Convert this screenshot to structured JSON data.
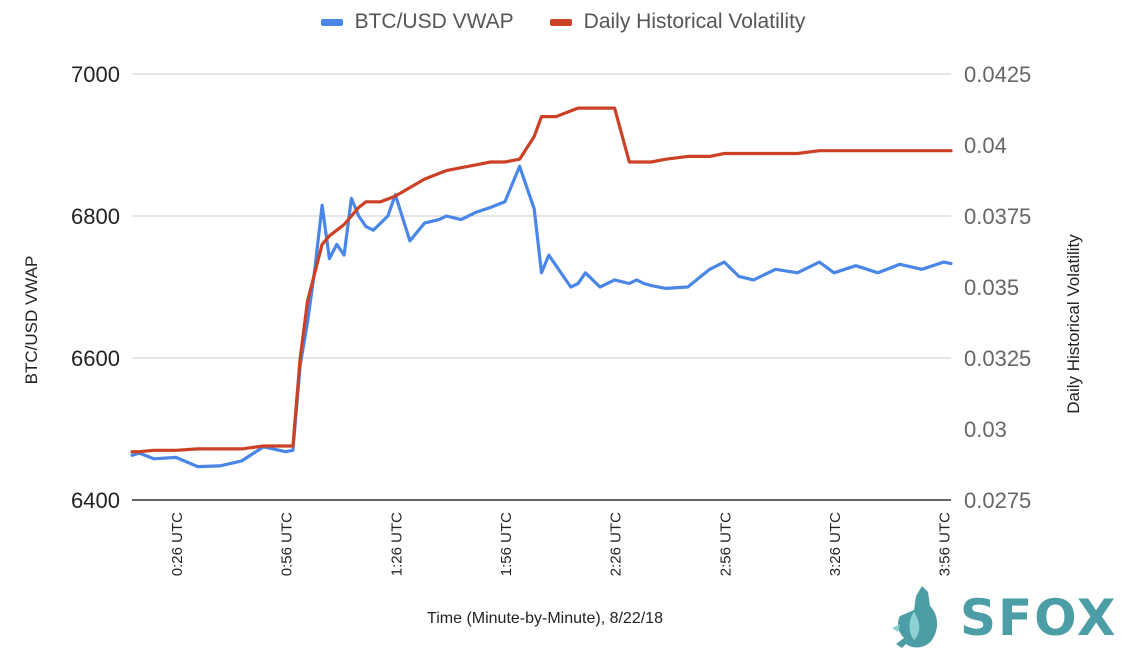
{
  "legend": {
    "series1": "BTC/USD VWAP",
    "series2": "Daily Historical Volatility"
  },
  "axes": {
    "ylabel_left": "BTC/USD VWAP",
    "ylabel_right": "Daily Historical Volatility",
    "xlabel": "Time (Minute-by-Minute), 8/22/18"
  },
  "logo": {
    "text": "SFOX",
    "icon": "fox-logo-icon"
  },
  "colors": {
    "vwap": "#4a86e8",
    "volatility": "#cc4125",
    "grid": "#cccccc",
    "logo": "#4b9ea6"
  },
  "chart_data": {
    "type": "line",
    "x": [
      "0:14",
      "0:16",
      "0:20",
      "0:26",
      "0:32",
      "0:38",
      "0:44",
      "0:50",
      "0:56",
      "0:58",
      "1:00",
      "1:02",
      "1:04",
      "1:06",
      "1:08",
      "1:10",
      "1:12",
      "1:14",
      "1:16",
      "1:18",
      "1:20",
      "1:22",
      "1:24",
      "1:26",
      "1:30",
      "1:34",
      "1:38",
      "1:40",
      "1:44",
      "1:48",
      "1:52",
      "1:56",
      "2:00",
      "2:04",
      "2:06",
      "2:08",
      "2:10",
      "2:12",
      "2:14",
      "2:16",
      "2:18",
      "2:22",
      "2:26",
      "2:30",
      "2:32",
      "2:34",
      "2:36",
      "2:40",
      "2:46",
      "2:52",
      "2:56",
      "3:00",
      "3:04",
      "3:10",
      "3:16",
      "3:22",
      "3:26",
      "3:32",
      "3:38",
      "3:44",
      "3:50",
      "3:56",
      "3:58"
    ],
    "series": [
      {
        "name": "BTC/USD VWAP",
        "axis": "left",
        "values": [
          6463,
          6466,
          6458,
          6460,
          6447,
          6448,
          6455,
          6475,
          6468,
          6470,
          6590,
          6650,
          6725,
          6815,
          6740,
          6760,
          6745,
          6825,
          6800,
          6785,
          6780,
          6790,
          6800,
          6830,
          6765,
          6790,
          6795,
          6800,
          6795,
          6805,
          6812,
          6820,
          6870,
          6810,
          6720,
          6745,
          6730,
          6715,
          6700,
          6705,
          6720,
          6700,
          6710,
          6705,
          6710,
          6705,
          6702,
          6698,
          6700,
          6725,
          6735,
          6715,
          6710,
          6725,
          6720,
          6735,
          6720,
          6730,
          6720,
          6732,
          6725,
          6735,
          6733
        ]
      },
      {
        "name": "Daily Historical Volatility",
        "axis": "right",
        "values": [
          0.0292,
          0.0292,
          0.02925,
          0.02925,
          0.0293,
          0.0293,
          0.0293,
          0.0294,
          0.0294,
          0.0294,
          0.0325,
          0.0345,
          0.0355,
          0.0365,
          0.0368,
          0.037,
          0.0372,
          0.0375,
          0.0378,
          0.038,
          0.038,
          0.038,
          0.0381,
          0.0382,
          0.0385,
          0.0388,
          0.039,
          0.0391,
          0.0392,
          0.0393,
          0.0394,
          0.0394,
          0.0395,
          0.0403,
          0.041,
          0.041,
          0.041,
          0.0411,
          0.0412,
          0.0413,
          0.0413,
          0.0413,
          0.0413,
          0.0394,
          0.0394,
          0.0394,
          0.0394,
          0.0395,
          0.0396,
          0.0396,
          0.0397,
          0.0397,
          0.0397,
          0.0397,
          0.0397,
          0.0398,
          0.0398,
          0.0398,
          0.0398,
          0.0398,
          0.0398,
          0.0398,
          0.0398
        ]
      }
    ],
    "ylim_left": [
      6400,
      7000
    ],
    "yticks_left": [
      "6400",
      "6600",
      "6800",
      "7000"
    ],
    "ylim_right": [
      0.0275,
      0.0425
    ],
    "yticks_right": [
      "0.0275",
      "0.03",
      "0.0325",
      "0.035",
      "0.0375",
      "0.04",
      "0.0425"
    ],
    "xticks": [
      "0:26 UTC",
      "0:56 UTC",
      "1:26 UTC",
      "1:56 UTC",
      "2:26 UTC",
      "2:56 UTC",
      "3:26 UTC",
      "3:56 UTC"
    ],
    "x_range": [
      "0:14",
      "3:58"
    ],
    "grid": true,
    "legend_position": "top"
  }
}
